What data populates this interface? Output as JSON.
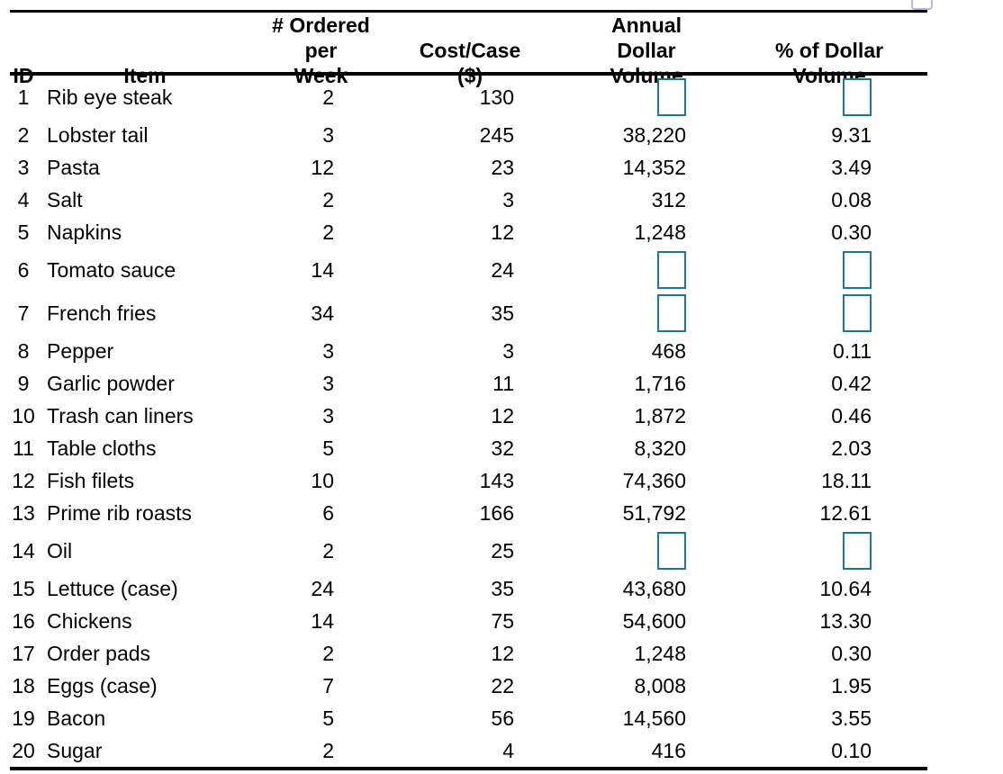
{
  "window": {
    "background": "#ffffff",
    "partial_widget": {
      "description": "input box clipped at top edge of screenshot",
      "border_color": "#b3b7e2"
    }
  },
  "table": {
    "style": {
      "rule_color": "#000000",
      "text_color": "#000000",
      "input_box_border": "#1d7795"
    },
    "columns": [
      {
        "label": "ID"
      },
      {
        "label": "Item"
      },
      {
        "label": "# Ordered per\nWeek"
      },
      {
        "label": "Cost/Case\n($)"
      },
      {
        "label": "Annual Dollar\nVolume"
      },
      {
        "label": "% of Dollar\nVolume"
      }
    ],
    "rows": [
      {
        "id": "1",
        "item": "Rib eye steak",
        "ordered_per_week": "2",
        "cost_per_case": "130",
        "annual_dollar_volume": "",
        "pct_of_dollar_volume": "",
        "input_boxes": true
      },
      {
        "id": "2",
        "item": "Lobster tail",
        "ordered_per_week": "3",
        "cost_per_case": "245",
        "annual_dollar_volume": "38,220",
        "pct_of_dollar_volume": "9.31",
        "input_boxes": false
      },
      {
        "id": "3",
        "item": "Pasta",
        "ordered_per_week": "12",
        "cost_per_case": "23",
        "annual_dollar_volume": "14,352",
        "pct_of_dollar_volume": "3.49",
        "input_boxes": false
      },
      {
        "id": "4",
        "item": "Salt",
        "ordered_per_week": "2",
        "cost_per_case": "3",
        "annual_dollar_volume": "312",
        "pct_of_dollar_volume": "0.08",
        "input_boxes": false
      },
      {
        "id": "5",
        "item": "Napkins",
        "ordered_per_week": "2",
        "cost_per_case": "12",
        "annual_dollar_volume": "1,248",
        "pct_of_dollar_volume": "0.30",
        "input_boxes": false
      },
      {
        "id": "6",
        "item": "Tomato sauce",
        "ordered_per_week": "14",
        "cost_per_case": "24",
        "annual_dollar_volume": "",
        "pct_of_dollar_volume": "",
        "input_boxes": true
      },
      {
        "id": "7",
        "item": "French fries",
        "ordered_per_week": "34",
        "cost_per_case": "35",
        "annual_dollar_volume": "",
        "pct_of_dollar_volume": "",
        "input_boxes": true
      },
      {
        "id": "8",
        "item": "Pepper",
        "ordered_per_week": "3",
        "cost_per_case": "3",
        "annual_dollar_volume": "468",
        "pct_of_dollar_volume": "0.11",
        "input_boxes": false
      },
      {
        "id": "9",
        "item": "Garlic powder",
        "ordered_per_week": "3",
        "cost_per_case": "11",
        "annual_dollar_volume": "1,716",
        "pct_of_dollar_volume": "0.42",
        "input_boxes": false
      },
      {
        "id": "10",
        "item": "Trash can liners",
        "ordered_per_week": "3",
        "cost_per_case": "12",
        "annual_dollar_volume": "1,872",
        "pct_of_dollar_volume": "0.46",
        "input_boxes": false
      },
      {
        "id": "11",
        "item": "Table cloths",
        "ordered_per_week": "5",
        "cost_per_case": "32",
        "annual_dollar_volume": "8,320",
        "pct_of_dollar_volume": "2.03",
        "input_boxes": false
      },
      {
        "id": "12",
        "item": "Fish filets",
        "ordered_per_week": "10",
        "cost_per_case": "143",
        "annual_dollar_volume": "74,360",
        "pct_of_dollar_volume": "18.11",
        "input_boxes": false
      },
      {
        "id": "13",
        "item": "Prime rib roasts",
        "ordered_per_week": "6",
        "cost_per_case": "166",
        "annual_dollar_volume": "51,792",
        "pct_of_dollar_volume": "12.61",
        "input_boxes": false
      },
      {
        "id": "14",
        "item": "Oil",
        "ordered_per_week": "2",
        "cost_per_case": "25",
        "annual_dollar_volume": "",
        "pct_of_dollar_volume": "",
        "input_boxes": true
      },
      {
        "id": "15",
        "item": "Lettuce (case)",
        "ordered_per_week": "24",
        "cost_per_case": "35",
        "annual_dollar_volume": "43,680",
        "pct_of_dollar_volume": "10.64",
        "input_boxes": false
      },
      {
        "id": "16",
        "item": "Chickens",
        "ordered_per_week": "14",
        "cost_per_case": "75",
        "annual_dollar_volume": "54,600",
        "pct_of_dollar_volume": "13.30",
        "input_boxes": false
      },
      {
        "id": "17",
        "item": "Order pads",
        "ordered_per_week": "2",
        "cost_per_case": "12",
        "annual_dollar_volume": "1,248",
        "pct_of_dollar_volume": "0.30",
        "input_boxes": false
      },
      {
        "id": "18",
        "item": "Eggs (case)",
        "ordered_per_week": "7",
        "cost_per_case": "22",
        "annual_dollar_volume": "8,008",
        "pct_of_dollar_volume": "1.95",
        "input_boxes": false
      },
      {
        "id": "19",
        "item": "Bacon",
        "ordered_per_week": "5",
        "cost_per_case": "56",
        "annual_dollar_volume": "14,560",
        "pct_of_dollar_volume": "3.55",
        "input_boxes": false
      },
      {
        "id": "20",
        "item": "Sugar",
        "ordered_per_week": "2",
        "cost_per_case": "4",
        "annual_dollar_volume": "416",
        "pct_of_dollar_volume": "0.10",
        "input_boxes": false
      }
    ]
  }
}
